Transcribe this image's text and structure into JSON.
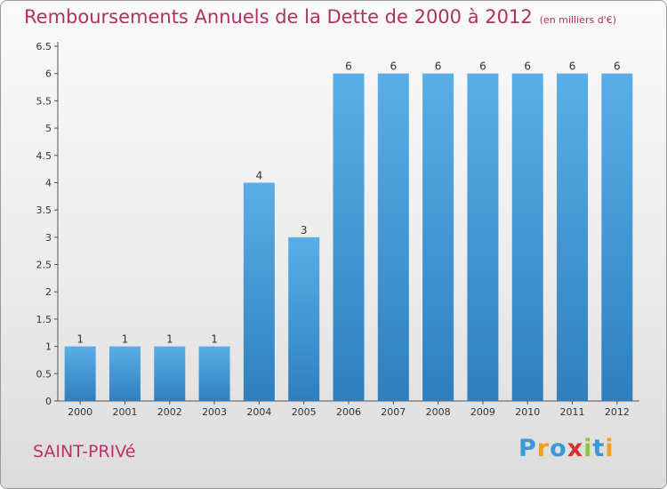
{
  "header": {
    "title": "Remboursements Annuels de la Dette de 2000 à 2012",
    "unit": "(en milliers d'€)"
  },
  "footer": {
    "commune": "SAINT-PRIVé",
    "logo_letters": [
      {
        "ch": "P",
        "color": "#3a9ad9"
      },
      {
        "ch": "r",
        "color": "#f0a020"
      },
      {
        "ch": "o",
        "color": "#3a9ad9"
      },
      {
        "ch": "x",
        "color": "#d83030"
      },
      {
        "ch": "i",
        "color": "#8cc63f"
      },
      {
        "ch": "t",
        "color": "#3a9ad9"
      },
      {
        "ch": "i",
        "color": "#f0a020"
      }
    ]
  },
  "chart_data": {
    "type": "bar",
    "title": "Remboursements Annuels de la Dette de 2000 à 2012",
    "xlabel": "",
    "ylabel": "",
    "categories": [
      "2000",
      "2001",
      "2002",
      "2003",
      "2004",
      "2005",
      "2006",
      "2007",
      "2008",
      "2009",
      "2010",
      "2011",
      "2012"
    ],
    "values": [
      1,
      1,
      1,
      1,
      4,
      3,
      6,
      6,
      6,
      6,
      6,
      6,
      6
    ],
    "data_labels": [
      "1",
      "1",
      "1",
      "1",
      "4",
      "3",
      "6",
      "6",
      "6",
      "6",
      "6",
      "6",
      "6"
    ],
    "ylim": [
      0,
      6.5
    ],
    "yticks": [
      0,
      0.5,
      1,
      1.5,
      2,
      2.5,
      3,
      3.5,
      4,
      4.5,
      5,
      5.5,
      6,
      6.5
    ],
    "ytick_labels": [
      "0",
      "0.5",
      "1",
      "1.5",
      "2",
      "2.5",
      "3",
      "3.5",
      "4",
      "4.5",
      "5",
      "5.5",
      "6",
      "6.5"
    ],
    "bar_color": "#4a9ee0",
    "grid": false,
    "legend": "none"
  }
}
